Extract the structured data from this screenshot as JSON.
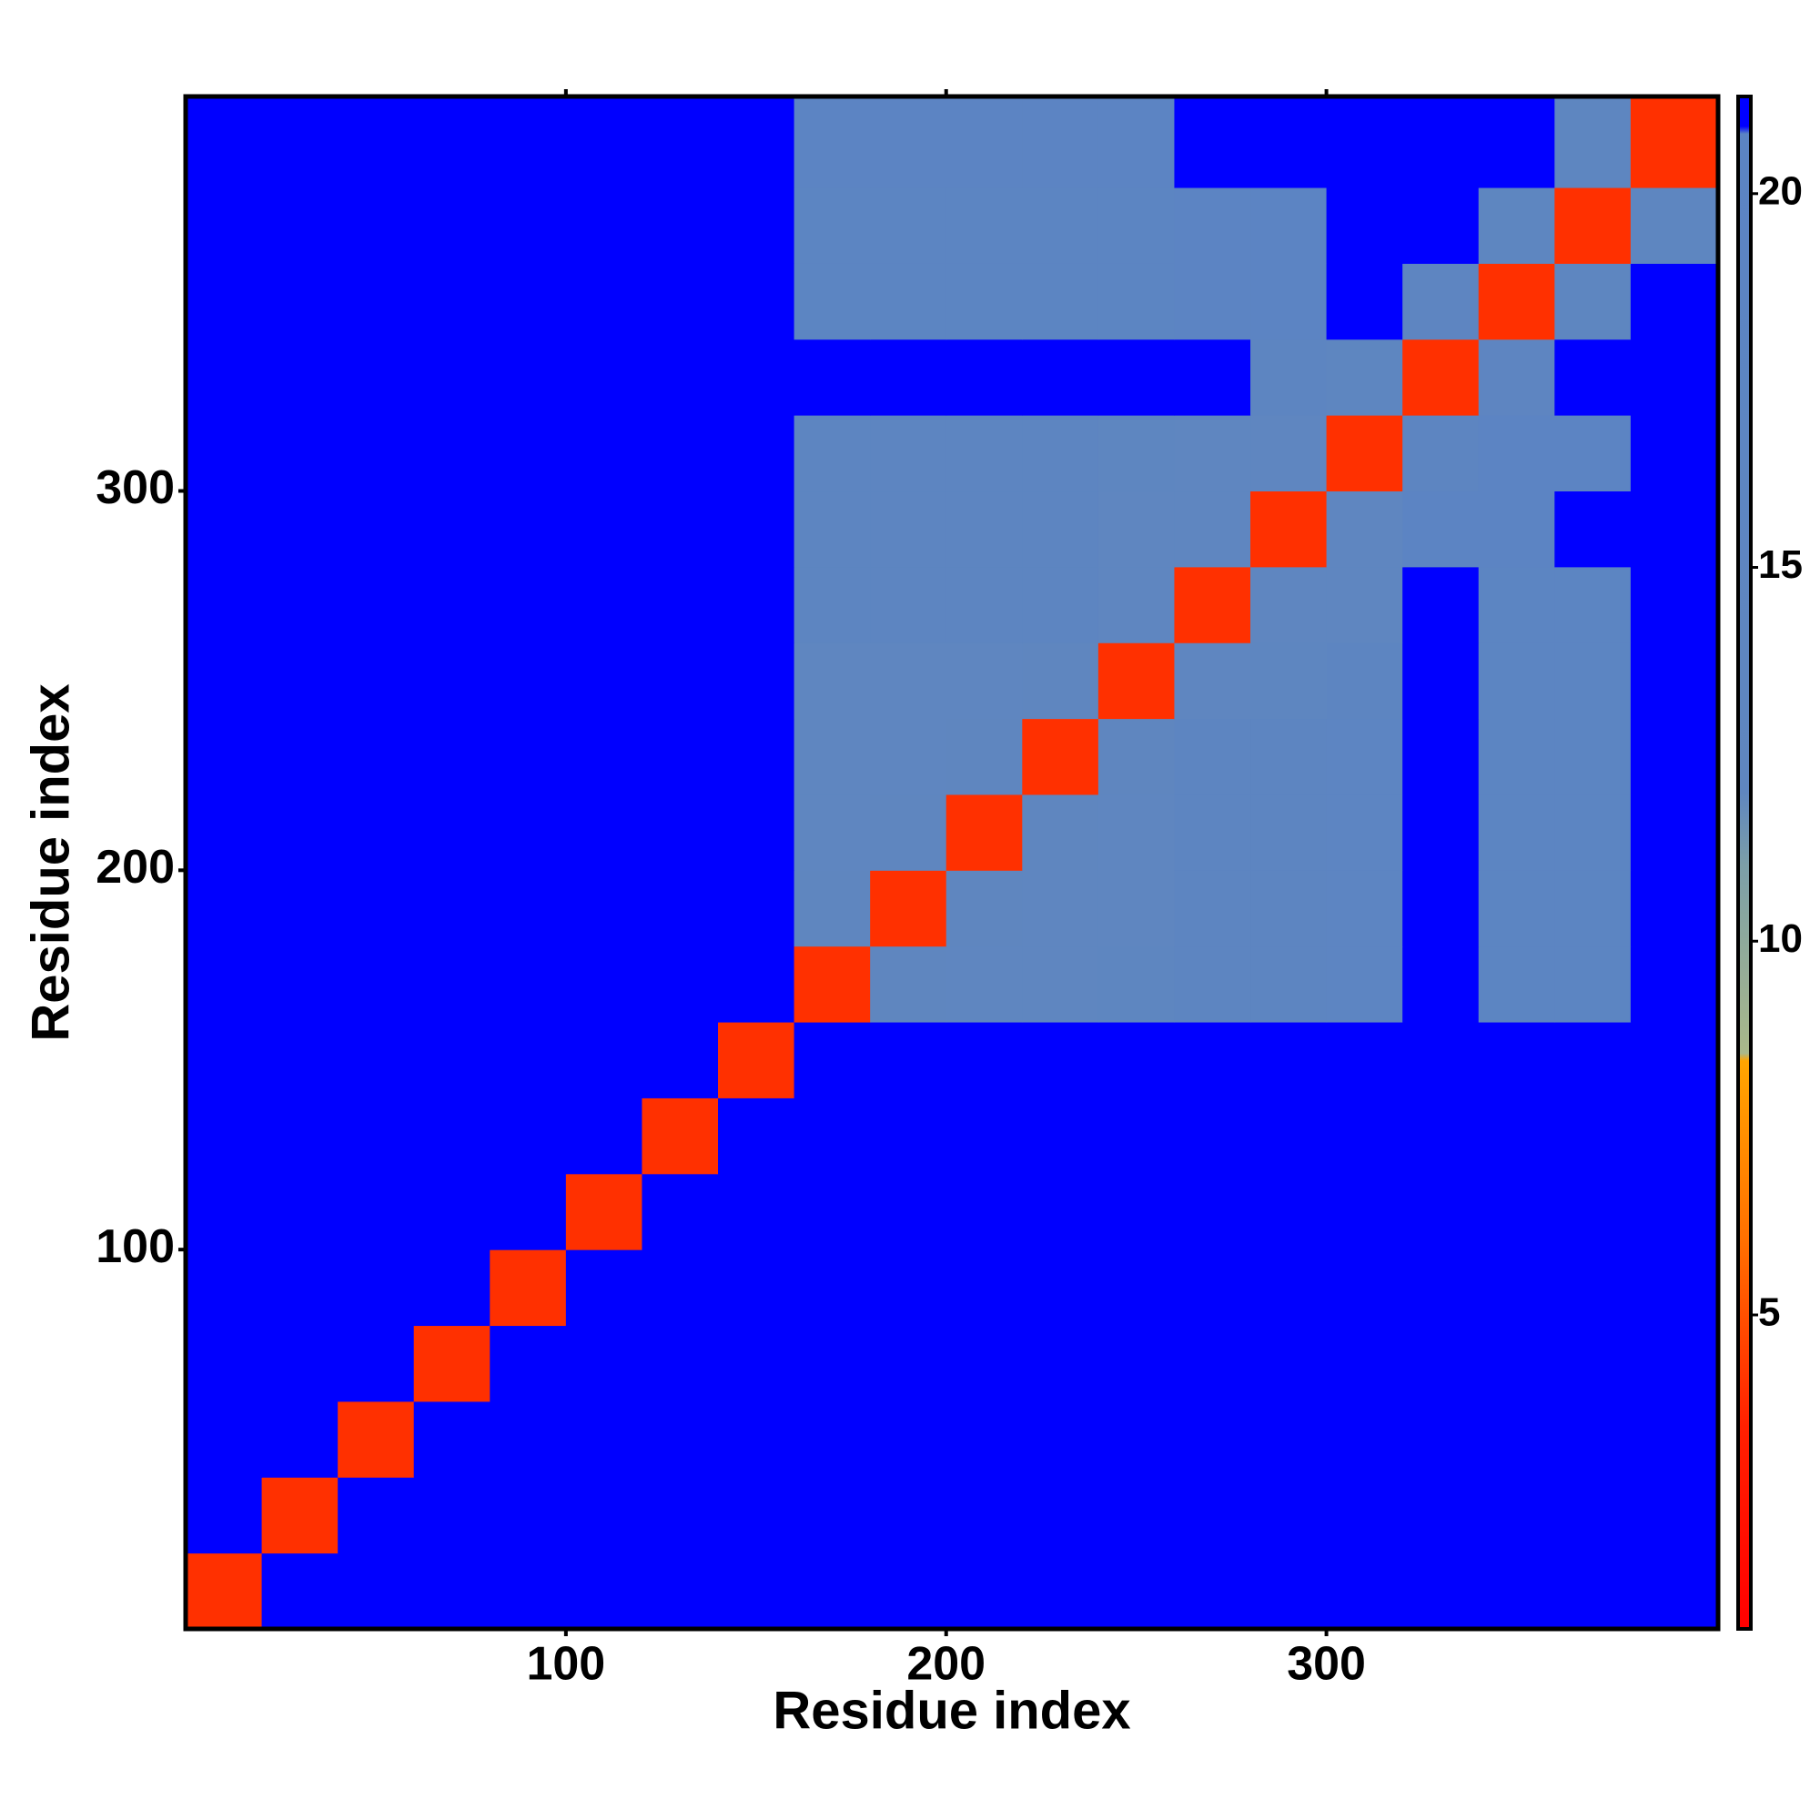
{
  "chart_data": {
    "type": "heatmap",
    "x_label": "Residue index",
    "y_label": "Residue index",
    "x_edges": [
      0,
      20,
      40,
      60,
      80,
      100,
      120,
      140,
      160,
      180,
      200,
      220,
      240,
      260,
      280,
      300,
      320,
      340,
      360,
      380,
      403
    ],
    "y_edges": [
      0,
      20,
      40,
      60,
      80,
      100,
      120,
      140,
      160,
      180,
      200,
      220,
      240,
      260,
      280,
      300,
      320,
      340,
      360,
      380,
      404
    ],
    "xlim": [
      0,
      403
    ],
    "ylim": [
      0,
      404
    ],
    "xticks": [
      100,
      200,
      300
    ],
    "yticks": [
      100,
      200,
      300
    ],
    "clim": [
      0.8,
      21.3
    ],
    "cticks": [
      5,
      10,
      15,
      20
    ],
    "colorscale": [
      [
        0.8,
        "#ff0000"
      ],
      [
        3.5,
        "#ff2000"
      ],
      [
        6,
        "#ff7000"
      ],
      [
        8.4,
        "#ffa500"
      ],
      [
        8.5,
        "#a9b88a"
      ],
      [
        11,
        "#7c9fa8"
      ],
      [
        12,
        "#5f86bf"
      ],
      [
        20.8,
        "#5b84c4"
      ],
      [
        20.9,
        "#0000ff"
      ],
      [
        21.3,
        "#0000ff"
      ]
    ],
    "z": [
      [
        4,
        21,
        21,
        21,
        21,
        21,
        21,
        21,
        21,
        21,
        21,
        21,
        21,
        21,
        21,
        21,
        21,
        21,
        21,
        21
      ],
      [
        21,
        4,
        21,
        21,
        21,
        21,
        21,
        21,
        21,
        21,
        21,
        21,
        21,
        21,
        21,
        21,
        21,
        21,
        21,
        21
      ],
      [
        21,
        21,
        4,
        21,
        21,
        21,
        21,
        21,
        21,
        21,
        21,
        21,
        21,
        21,
        21,
        21,
        21,
        21,
        21,
        21
      ],
      [
        21,
        21,
        21,
        4,
        21,
        21,
        21,
        21,
        21,
        21,
        21,
        21,
        21,
        21,
        21,
        21,
        21,
        21,
        21,
        21
      ],
      [
        21,
        21,
        21,
        21,
        4,
        21,
        21,
        21,
        21,
        21,
        21,
        21,
        21,
        21,
        21,
        21,
        21,
        21,
        21,
        21
      ],
      [
        21,
        21,
        21,
        21,
        21,
        4,
        21,
        21,
        21,
        21,
        21,
        21,
        21,
        21,
        21,
        21,
        21,
        21,
        21,
        21
      ],
      [
        21,
        21,
        21,
        21,
        21,
        21,
        4,
        21,
        21,
        21,
        21,
        21,
        21,
        21,
        21,
        21,
        21,
        21,
        21,
        21
      ],
      [
        21,
        21,
        21,
        21,
        21,
        21,
        21,
        4,
        21,
        21,
        21,
        21,
        21,
        21,
        21,
        21,
        21,
        21,
        21,
        21
      ],
      [
        21,
        21,
        21,
        21,
        21,
        21,
        21,
        21,
        4,
        12,
        13,
        13,
        14,
        16,
        16,
        17,
        21,
        18,
        18,
        21
      ],
      [
        21,
        21,
        21,
        21,
        21,
        21,
        21,
        21,
        12,
        4,
        12,
        13,
        13,
        16,
        16,
        17,
        21,
        18,
        18,
        21
      ],
      [
        21,
        21,
        21,
        21,
        21,
        21,
        21,
        21,
        13,
        12,
        4,
        12,
        13,
        16,
        16,
        17,
        21,
        18,
        18,
        21
      ],
      [
        21,
        21,
        21,
        21,
        21,
        21,
        21,
        21,
        13,
        13,
        12,
        4,
        12,
        16,
        16,
        17,
        21,
        18,
        18,
        21
      ],
      [
        21,
        21,
        21,
        21,
        21,
        21,
        21,
        21,
        13,
        13,
        13,
        12,
        4,
        13,
        14,
        16,
        21,
        18,
        18,
        21
      ],
      [
        21,
        21,
        21,
        21,
        21,
        21,
        21,
        21,
        16,
        16,
        16,
        16,
        13,
        4,
        13,
        13,
        21,
        18,
        18,
        21
      ],
      [
        21,
        21,
        21,
        21,
        21,
        21,
        21,
        21,
        16,
        16,
        16,
        16,
        13,
        13,
        4,
        13,
        19,
        19,
        21,
        21
      ],
      [
        21,
        21,
        21,
        21,
        21,
        21,
        21,
        21,
        16,
        16,
        16,
        16,
        14,
        13,
        13,
        4,
        16,
        19,
        19,
        21
      ],
      [
        21,
        21,
        21,
        21,
        21,
        21,
        21,
        21,
        21,
        21,
        21,
        21,
        21,
        21,
        16,
        14,
        4,
        15,
        21,
        21
      ],
      [
        21,
        21,
        21,
        21,
        21,
        21,
        21,
        21,
        18,
        18,
        18,
        18,
        18,
        19,
        19,
        21,
        15,
        4,
        14,
        21
      ],
      [
        21,
        21,
        21,
        21,
        21,
        21,
        21,
        21,
        18,
        18,
        18,
        18,
        18,
        19,
        19,
        21,
        21,
        14,
        4,
        14
      ],
      [
        21,
        21,
        21,
        21,
        21,
        21,
        21,
        21,
        19,
        19,
        19,
        19,
        19,
        21,
        21,
        21,
        21,
        21,
        14,
        4
      ]
    ]
  }
}
